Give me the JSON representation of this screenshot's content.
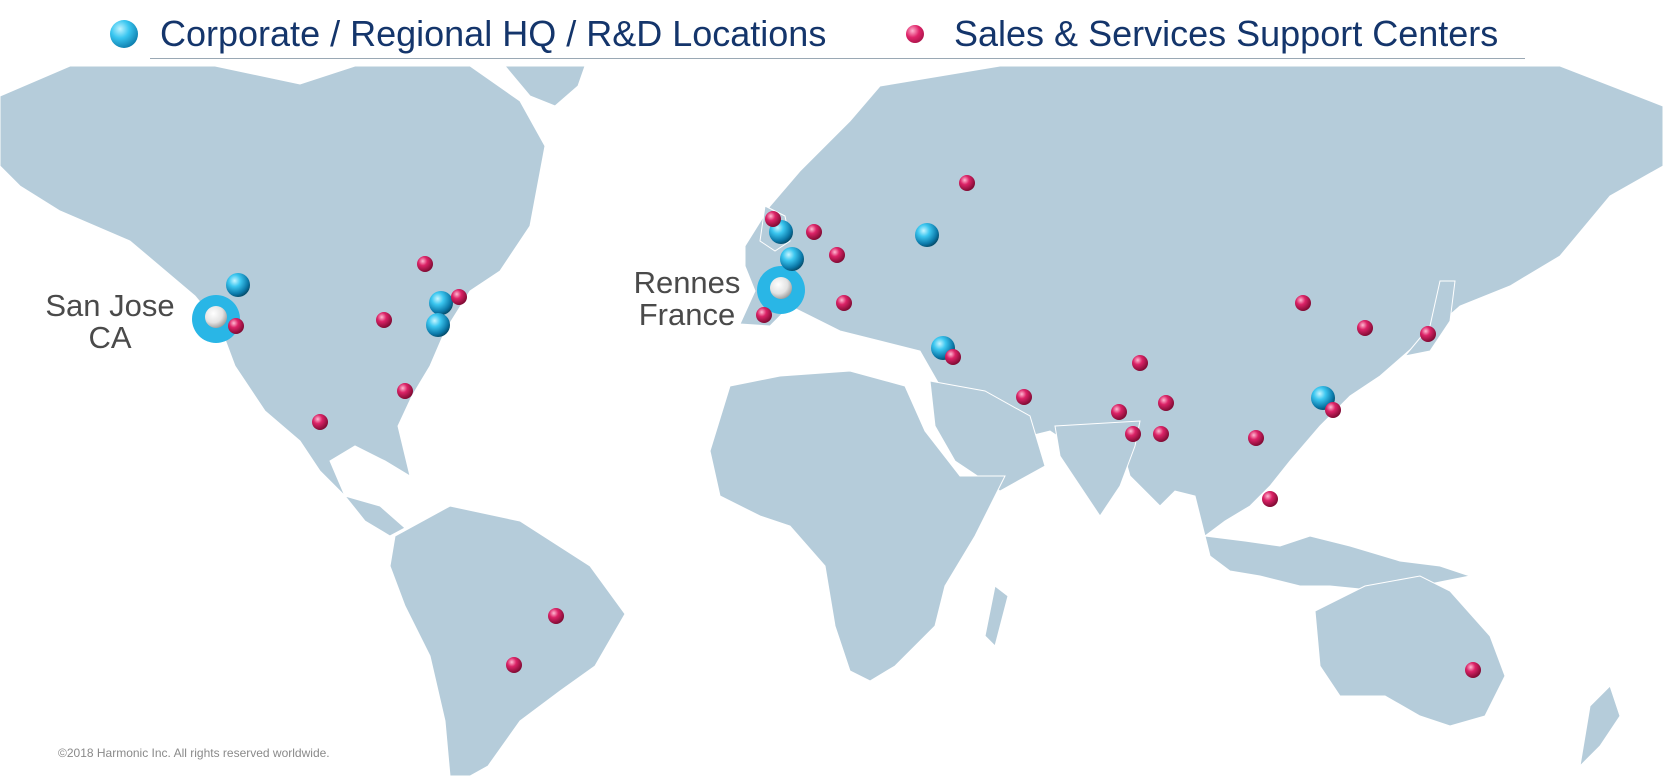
{
  "legend": {
    "hq_label": "Corporate / Regional HQ / R&D Locations",
    "sales_label": "Sales & Services Support Centers"
  },
  "labels": {
    "san_jose_line1": "San Jose",
    "san_jose_line2": "CA",
    "rennes_line1": "Rennes",
    "rennes_line2": "France"
  },
  "footer": {
    "copyright": "©2018 Harmonic Inc. All rights reserved worldwide."
  },
  "colors": {
    "land": "#b5ccda",
    "hq_marker": "#29b6e6",
    "sales_marker": "#c41e59",
    "legend_text": "#14356b"
  },
  "markers": {
    "main_hq": [
      "san-jose-ca",
      "rennes-france"
    ],
    "hq": [
      "pacific-northwest",
      "northeast-us-a",
      "northeast-us-b",
      "united-kingdom",
      "northern-france",
      "eastern-europe",
      "israel",
      "hong-kong"
    ],
    "sales": [
      "california",
      "eastern-canada",
      "northeast-us",
      "chicago",
      "florida",
      "mexico",
      "brazil",
      "argentina",
      "ireland",
      "netherlands",
      "germany",
      "spain",
      "italy",
      "russia",
      "israel",
      "saudi-arabia",
      "india-north",
      "india-west",
      "india-east",
      "india-south-west",
      "india-south",
      "china-north",
      "korea",
      "japan",
      "taiwan",
      "thailand",
      "singapore",
      "australia"
    ]
  }
}
